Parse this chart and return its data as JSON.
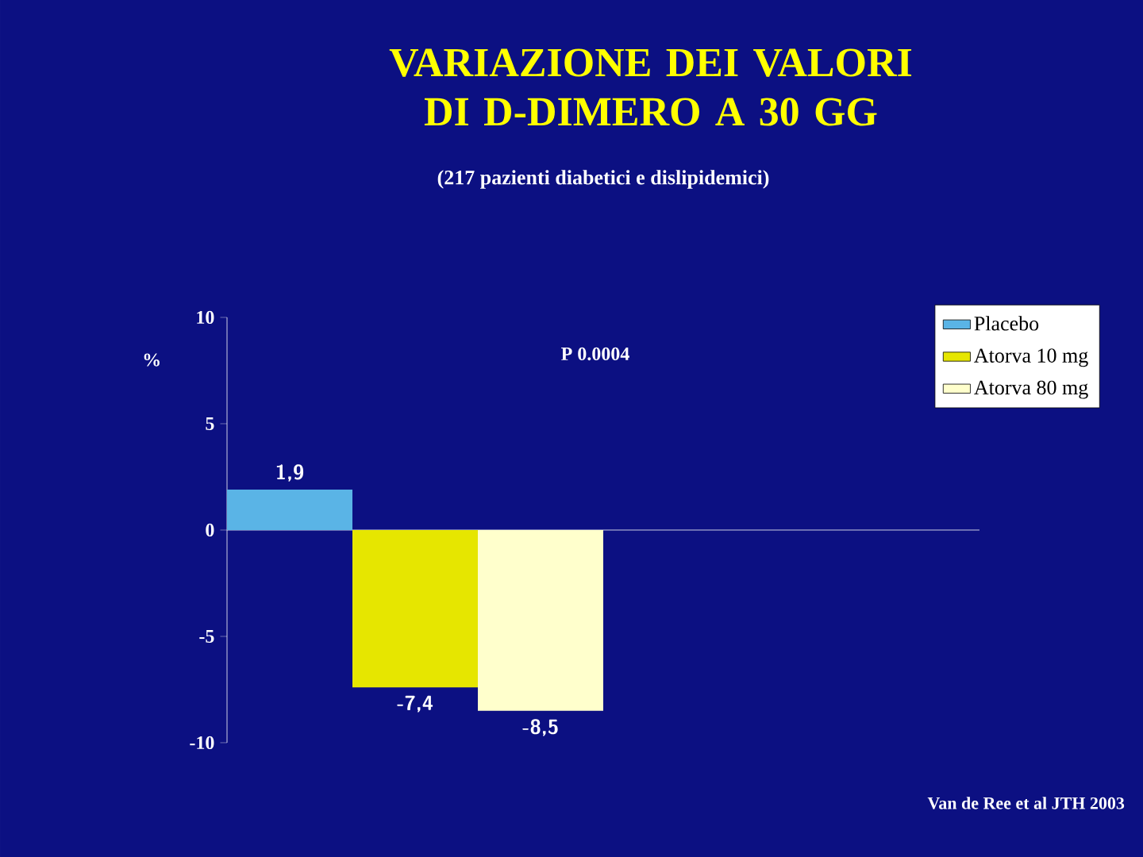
{
  "chart_data": {
    "type": "bar",
    "title": "VARIAZIONE DEI VALORI DI D-DIMERO A 30 GG",
    "subtitle": "(217 pazienti diabetici e dislipidemici)",
    "ylabel": "%",
    "categories": [
      null
    ],
    "series": [
      {
        "name": "Placebo",
        "color": "#5ab4e6",
        "values": [
          1.9
        ],
        "value_labels": [
          "1,9"
        ]
      },
      {
        "name": "Atorva 10 mg",
        "color": "#e6e600",
        "values": [
          -7.4
        ],
        "value_labels": [
          "-7,4"
        ]
      },
      {
        "name": "Atorva 80 mg",
        "color": "#ffffcc",
        "values": [
          -8.5
        ],
        "value_labels": [
          "-8,5"
        ]
      }
    ],
    "ylim": [
      -10,
      10
    ],
    "yticks": [
      -10,
      -5,
      0,
      5,
      10
    ],
    "legend": "top right",
    "annotations": [
      "P 0.0004",
      "Van de Ree et al JTH 2003"
    ]
  }
}
